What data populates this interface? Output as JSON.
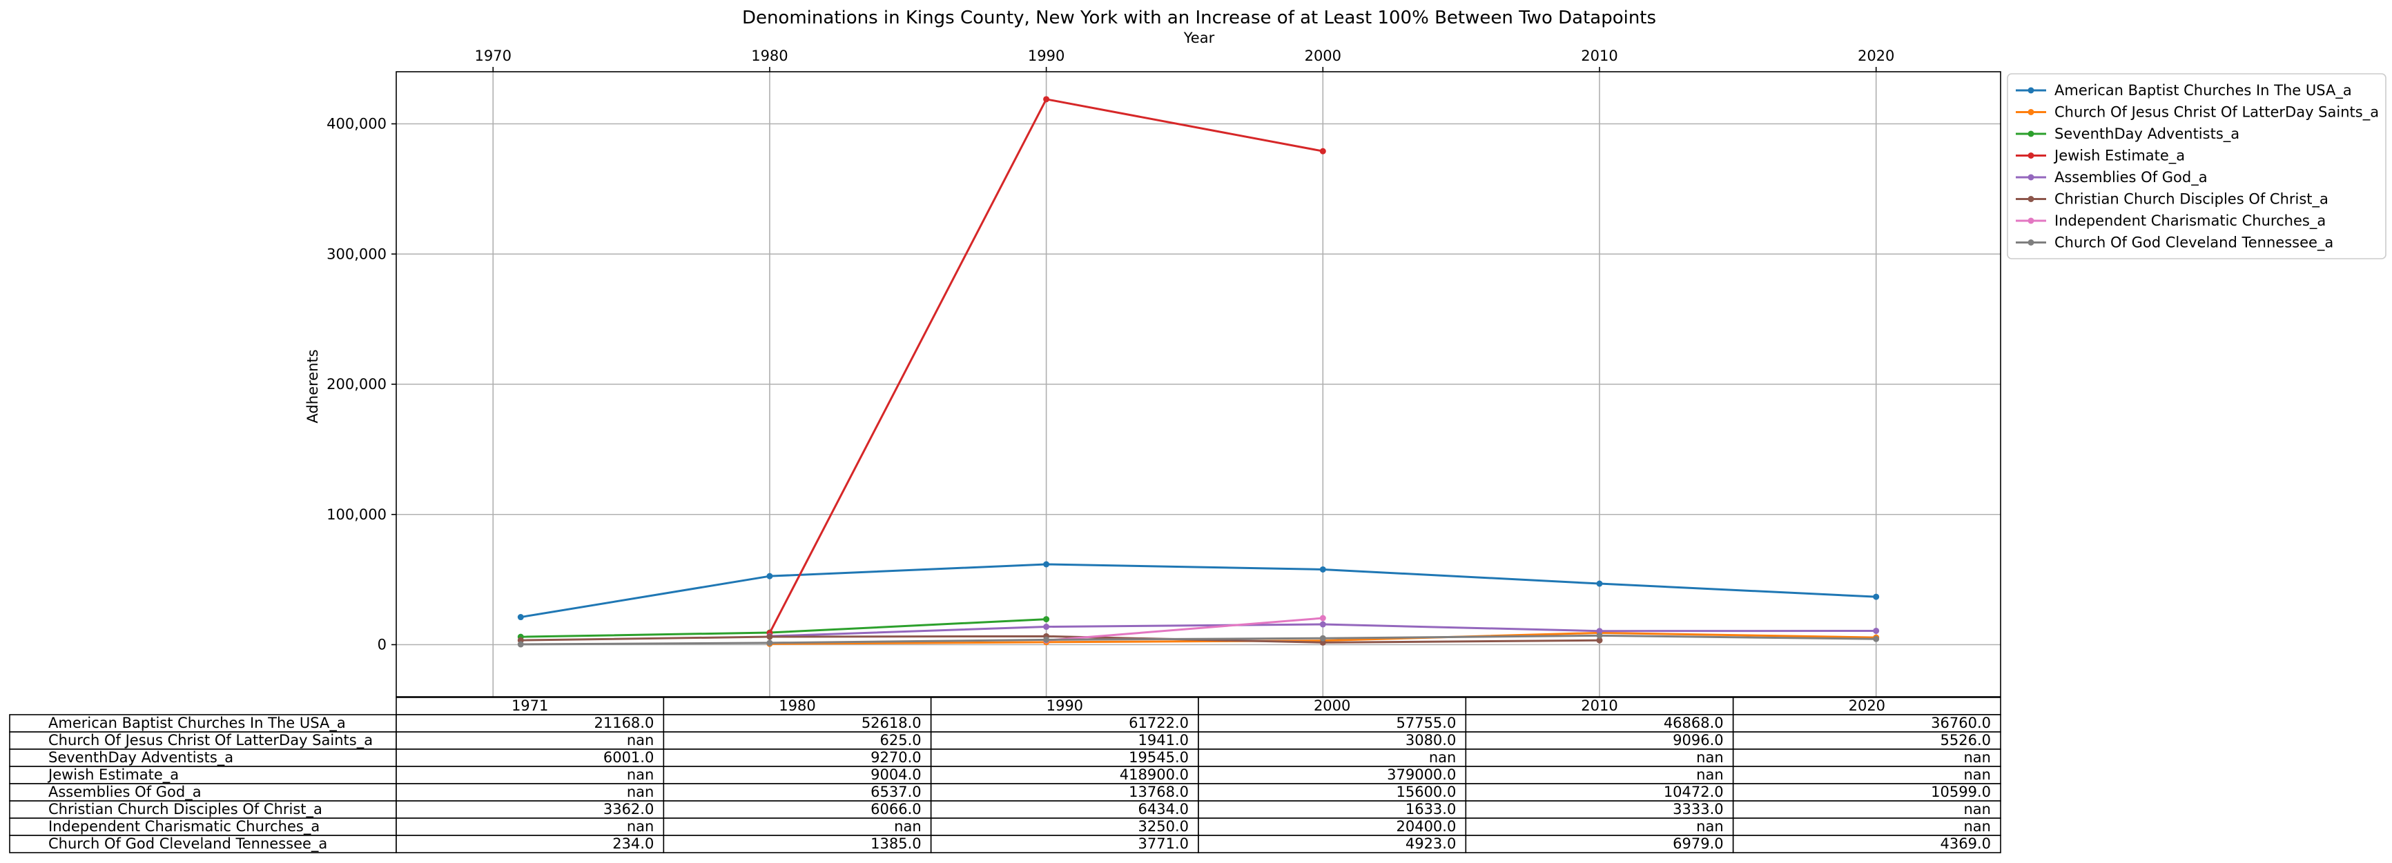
{
  "chart_data": {
    "type": "line",
    "title": "Denominations in Kings County, New York with an Increase of at Least 100% Between Two Datapoints",
    "xlabel": "Year",
    "ylabel": "Adherents",
    "xlim": [
      1966.5,
      2024.5
    ],
    "ylim": [
      -40000,
      440000
    ],
    "x_ticks": [
      1970,
      1980,
      1990,
      2000,
      2010,
      2020
    ],
    "y_ticks": [
      0,
      100000,
      200000,
      300000,
      400000
    ],
    "y_tick_labels": [
      "0",
      "100,000",
      "200,000",
      "300,000",
      "400,000"
    ],
    "grid": true,
    "legend_position": "outside upper right",
    "x": [
      1971,
      1980,
      1990,
      2000,
      2010,
      2020
    ],
    "series": [
      {
        "name": "American Baptist Churches In The USA_a",
        "color": "#1f77b4",
        "values": [
          21168.0,
          52618.0,
          61722.0,
          57755.0,
          46868.0,
          36760.0
        ]
      },
      {
        "name": "Church Of Jesus Christ Of LatterDay Saints_a",
        "color": "#ff7f0e",
        "values": [
          null,
          625.0,
          1941.0,
          3080.0,
          9096.0,
          5526.0
        ]
      },
      {
        "name": "SeventhDay Adventists_a",
        "color": "#2ca02c",
        "values": [
          6001.0,
          9270.0,
          19545.0,
          null,
          null,
          null
        ]
      },
      {
        "name": "Jewish Estimate_a",
        "color": "#d62728",
        "values": [
          null,
          9004.0,
          418900.0,
          379000.0,
          null,
          null
        ]
      },
      {
        "name": "Assemblies Of God_a",
        "color": "#9467bd",
        "values": [
          null,
          6537.0,
          13768.0,
          15600.0,
          10472.0,
          10599.0
        ]
      },
      {
        "name": "Christian Church Disciples Of Christ_a",
        "color": "#8c564b",
        "values": [
          3362.0,
          6066.0,
          6434.0,
          1633.0,
          3333.0,
          null
        ]
      },
      {
        "name": "Independent Charismatic Churches_a",
        "color": "#e377c2",
        "values": [
          null,
          null,
          3250.0,
          20400.0,
          null,
          null
        ]
      },
      {
        "name": "Church Of God Cleveland Tennessee_a",
        "color": "#7f7f7f",
        "values": [
          234.0,
          1385.0,
          3771.0,
          4923.0,
          6979.0,
          4369.0
        ]
      }
    ],
    "table": {
      "col_labels": [
        "1971",
        "1980",
        "1990",
        "2000",
        "2010",
        "2020"
      ],
      "rows": [
        {
          "label": "American Baptist Churches In The USA_a",
          "cells": [
            "21168.0",
            "52618.0",
            "61722.0",
            "57755.0",
            "46868.0",
            "36760.0"
          ]
        },
        {
          "label": "Church Of Jesus Christ Of LatterDay Saints_a",
          "cells": [
            "nan",
            "625.0",
            "1941.0",
            "3080.0",
            "9096.0",
            "5526.0"
          ]
        },
        {
          "label": "SeventhDay Adventists_a",
          "cells": [
            "6001.0",
            "9270.0",
            "19545.0",
            "nan",
            "nan",
            "nan"
          ]
        },
        {
          "label": "Jewish Estimate_a",
          "cells": [
            "nan",
            "9004.0",
            "418900.0",
            "379000.0",
            "nan",
            "nan"
          ]
        },
        {
          "label": "Assemblies Of God_a",
          "cells": [
            "nan",
            "6537.0",
            "13768.0",
            "15600.0",
            "10472.0",
            "10599.0"
          ]
        },
        {
          "label": "Christian Church Disciples Of Christ_a",
          "cells": [
            "3362.0",
            "6066.0",
            "6434.0",
            "1633.0",
            "3333.0",
            "nan"
          ]
        },
        {
          "label": "Independent Charismatic Churches_a",
          "cells": [
            "nan",
            "nan",
            "3250.0",
            "20400.0",
            "nan",
            "nan"
          ]
        },
        {
          "label": "Church Of God Cleveland Tennessee_a",
          "cells": [
            "234.0",
            "1385.0",
            "3771.0",
            "4923.0",
            "6979.0",
            "4369.0"
          ]
        }
      ]
    }
  }
}
